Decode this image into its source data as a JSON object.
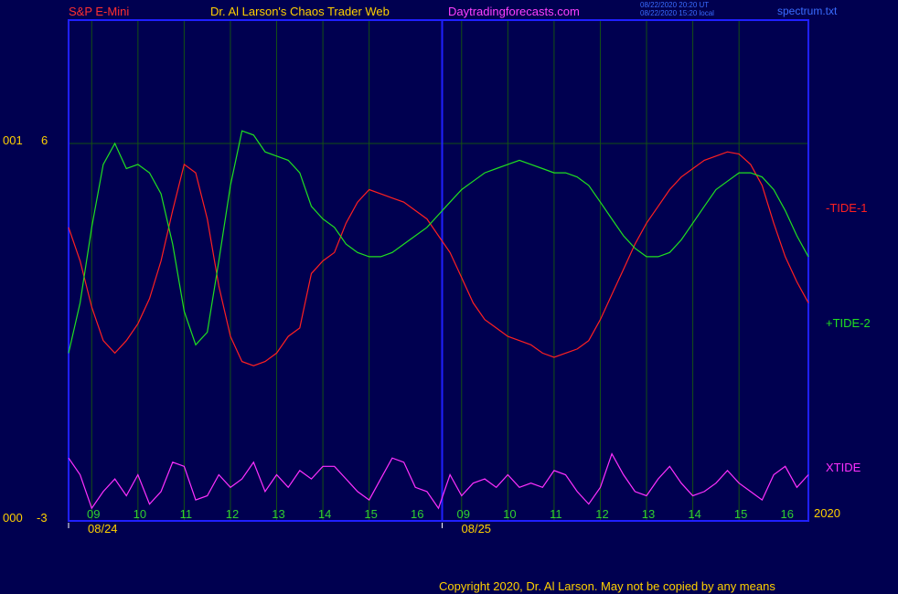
{
  "header": {
    "symbol": "S&P E-Mini",
    "title": "Dr. Al Larson's Chaos Trader Web",
    "site": "Daytradingforecasts.com",
    "timestamp_ut": "08/22/2020 20:20 UT",
    "timestamp_local": "08/22/2020 15:20 local",
    "file": "spectrum.txt"
  },
  "axes": {
    "y_top_label": "6",
    "y_top_prefix": "001",
    "y_bottom_label": "-3",
    "y_bottom_prefix": "000",
    "year": "2020"
  },
  "right_labels": {
    "tide1": "-TIDE-1",
    "tide2": "+TIDE-2",
    "xtide": "XTIDE"
  },
  "footer": {
    "copyright": "Copyright 2020, Dr. Al Larson. May not be copied by any means"
  },
  "colors": {
    "background": "#000050",
    "frame": "#2020ff",
    "grid": "#145014",
    "tide1": "#ff2020",
    "tide2": "#20e020",
    "xtide": "#ff30ff",
    "hour_label": "#30d030",
    "date_label": "#ffd000",
    "header_symbol": "#ff3030",
    "header_title": "#ffd000",
    "header_site": "#ff40ff"
  },
  "chart_data": {
    "type": "line",
    "ylim": [
      -3,
      6
    ],
    "x_tick_labels": [
      "09",
      "10",
      "11",
      "12",
      "13",
      "14",
      "15",
      "16",
      "09",
      "10",
      "11",
      "12",
      "13",
      "14",
      "15",
      "16"
    ],
    "x_dates": [
      "08/24",
      "08/25"
    ],
    "x": [
      0,
      0.25,
      0.5,
      0.75,
      1,
      1.25,
      1.5,
      1.75,
      2,
      2.25,
      2.5,
      2.75,
      3,
      3.25,
      3.5,
      3.75,
      4,
      4.25,
      4.5,
      4.75,
      5,
      5.25,
      5.5,
      5.75,
      6,
      6.25,
      6.5,
      6.75,
      7,
      7.25,
      7.5,
      7.75,
      8,
      8.25,
      8.5,
      8.75,
      9,
      9.25,
      9.5,
      9.75,
      10,
      10.25,
      10.5,
      10.75,
      11,
      11.25,
      11.5,
      11.75,
      12,
      12.25,
      12.5,
      12.75,
      13,
      13.25,
      13.5,
      13.75,
      14,
      14.25,
      14.5,
      14.75,
      15,
      15.25,
      15.5,
      15.75,
      16
    ],
    "series": [
      {
        "name": "-TIDE-1",
        "values": [
          4.0,
          3.2,
          2.1,
          1.3,
          1.0,
          1.3,
          1.7,
          2.3,
          3.2,
          4.4,
          5.5,
          5.3,
          4.2,
          2.6,
          1.4,
          0.8,
          0.7,
          0.8,
          1.0,
          1.4,
          1.6,
          2.9,
          3.2,
          3.4,
          4.1,
          4.6,
          4.9,
          4.8,
          4.7,
          4.6,
          4.4,
          4.2,
          3.8,
          3.4,
          2.8,
          2.2,
          1.8,
          1.6,
          1.4,
          1.3,
          1.2,
          1.0,
          0.9,
          1.0,
          1.1,
          1.3,
          1.8,
          2.4,
          3.0,
          3.6,
          4.1,
          4.5,
          4.9,
          5.2,
          5.4,
          5.6,
          5.7,
          5.8,
          5.75,
          5.5,
          5.0,
          4.1,
          3.3,
          2.7,
          2.2
        ]
      },
      {
        "name": "+TIDE-2",
        "values": [
          1.0,
          2.2,
          4.0,
          5.5,
          6.0,
          5.4,
          5.5,
          5.3,
          4.8,
          3.6,
          2.0,
          1.2,
          1.5,
          3.2,
          5.0,
          6.3,
          6.2,
          5.8,
          5.7,
          5.6,
          5.3,
          4.5,
          4.2,
          4.0,
          3.6,
          3.4,
          3.3,
          3.3,
          3.4,
          3.6,
          3.8,
          4.0,
          4.3,
          4.6,
          4.9,
          5.1,
          5.3,
          5.4,
          5.5,
          5.6,
          5.5,
          5.4,
          5.3,
          5.3,
          5.2,
          5.0,
          4.6,
          4.2,
          3.8,
          3.5,
          3.3,
          3.3,
          3.4,
          3.7,
          4.1,
          4.5,
          4.9,
          5.1,
          5.3,
          5.3,
          5.2,
          4.9,
          4.4,
          3.8,
          3.3
        ]
      },
      {
        "name": "XTIDE",
        "values": [
          -1.5,
          -1.9,
          -2.7,
          -2.3,
          -2.0,
          -2.4,
          -1.9,
          -2.6,
          -2.3,
          -1.6,
          -1.7,
          -2.5,
          -2.4,
          -1.9,
          -2.2,
          -2.0,
          -1.6,
          -2.3,
          -1.9,
          -2.2,
          -1.8,
          -2.0,
          -1.7,
          -1.7,
          -2.0,
          -2.3,
          -2.5,
          -2.0,
          -1.5,
          -1.6,
          -2.2,
          -2.3,
          -2.7,
          -1.9,
          -2.4,
          -2.1,
          -2.0,
          -2.2,
          -1.9,
          -2.2,
          -2.1,
          -2.2,
          -1.8,
          -1.9,
          -2.3,
          -2.6,
          -2.2,
          -1.4,
          -1.9,
          -2.3,
          -2.4,
          -2.0,
          -1.7,
          -2.1,
          -2.4,
          -2.3,
          -2.1,
          -1.8,
          -2.1,
          -2.3,
          -2.5,
          -1.9,
          -1.7,
          -2.2,
          -1.9
        ]
      }
    ]
  }
}
